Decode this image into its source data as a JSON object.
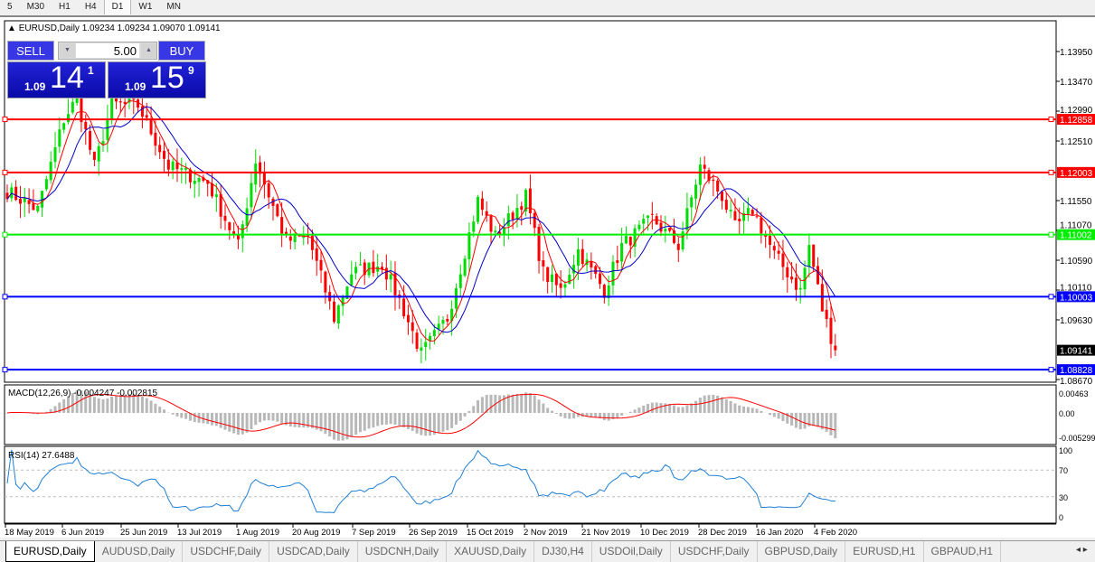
{
  "timeframes": [
    "5",
    "M30",
    "H1",
    "H4",
    "D1",
    "W1",
    "MN"
  ],
  "selected_timeframe": "D1",
  "chart": {
    "symbol_info": "EURUSD,Daily  1.09234 1.09234 1.09070 1.09141",
    "trade_panel": {
      "sell_label": "SELL",
      "buy_label": "BUY",
      "lot": "5.00",
      "sell_small": "1.09",
      "sell_large": "14",
      "sell_sup": "1",
      "buy_small": "1.09",
      "buy_large": "15",
      "buy_sup": "9"
    },
    "price_axis": [
      "1.13950",
      "1.13470",
      "1.12990",
      "1.12510",
      "1.11550",
      "1.11070",
      "1.10590",
      "1.10110",
      "1.09630",
      "1.08670"
    ],
    "hlines": [
      {
        "price": "1.12858",
        "color": "#ff0000"
      },
      {
        "price": "1.12003",
        "color": "#ff0000"
      },
      {
        "price": "1.11002",
        "color": "#00ee00"
      },
      {
        "price": "1.10003",
        "color": "#0000ff"
      },
      {
        "price": "1.08828",
        "color": "#0000ff"
      }
    ],
    "current_price": "1.09141",
    "colors": {
      "bull": "#00dd00",
      "bear": "#ff0000",
      "ma_fast": "#ff0000",
      "ma_slow": "#0000cc",
      "macd_hist": "#b8b8b8",
      "macd_signal": "#ff0000",
      "rsi": "#1e7fd6"
    },
    "approx_closes": [
      [
        0,
        1.117
      ],
      [
        7,
        1.114
      ],
      [
        13,
        1.1286
      ],
      [
        16,
        1.132
      ],
      [
        20,
        1.121
      ],
      [
        24,
        1.131
      ],
      [
        30,
        1.1308
      ],
      [
        37,
        1.121
      ],
      [
        46,
        1.1184
      ],
      [
        53,
        1.1082
      ],
      [
        57,
        1.122
      ],
      [
        64,
        1.109
      ],
      [
        69,
        1.1097
      ],
      [
        75,
        1.0966
      ],
      [
        79,
        1.1039
      ],
      [
        86,
        1.1053
      ],
      [
        90,
        1.0995
      ],
      [
        95,
        1.0908
      ],
      [
        101,
        1.0966
      ],
      [
        108,
        1.1155
      ],
      [
        112,
        1.1097
      ],
      [
        119,
        1.1162
      ],
      [
        123,
        1.1039
      ],
      [
        127,
        1.101
      ],
      [
        131,
        1.1075
      ],
      [
        137,
        1.101
      ],
      [
        141,
        1.1082
      ],
      [
        148,
        1.1126
      ],
      [
        154,
        1.1082
      ],
      [
        159,
        1.121
      ],
      [
        164,
        1.1162
      ],
      [
        167,
        1.1111
      ],
      [
        171,
        1.114
      ],
      [
        176,
        1.1068
      ],
      [
        182,
        1.101
      ],
      [
        184,
        1.1082
      ],
      [
        187,
        1.098
      ],
      [
        190,
        1.0914
      ]
    ]
  },
  "macd": {
    "label": "MACD(12,26,9) -0.004247 -0.002815",
    "axis": [
      "0.00463",
      "0.00",
      "-0.005299"
    ]
  },
  "rsi": {
    "label": "RSI(14) 27.6488",
    "axis": [
      "100",
      "70",
      "30",
      "0"
    ]
  },
  "dates": [
    "18 May 2019",
    "6 Jun 2019",
    "25 Jun 2019",
    "13 Jul 2019",
    "1 Aug 2019",
    "20 Aug 2019",
    "7 Sep 2019",
    "26 Sep 2019",
    "15 Oct 2019",
    "2 Nov 2019",
    "21 Nov 2019",
    "10 Dec 2019",
    "28 Dec 2019",
    "16 Jan 2020",
    "4 Feb 2020"
  ],
  "tabs": [
    "EURUSD,Daily",
    "AUDUSD,Daily",
    "USDCHF,Daily",
    "USDCAD,Daily",
    "USDCNH,Daily",
    "XAUUSD,Daily",
    "DJ30,H4",
    "USDOil,Daily",
    "USDCHF,Daily",
    "GBPUSD,Daily",
    "EURUSD,H1",
    "GBPAUD,H1"
  ],
  "tab_nav": "◂ ▸"
}
